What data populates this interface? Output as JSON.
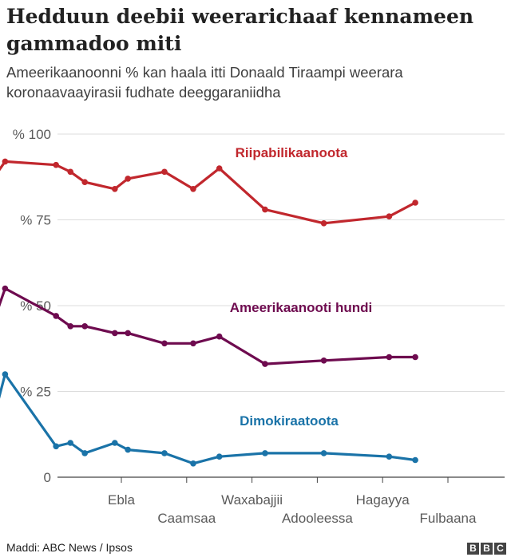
{
  "header": {
    "title": "Hedduun deebii weerarichaaf kennameen gammadoo miti",
    "subtitle": "Ameerikaanoonni % kan haala itti Donaald Tiraampi weerara koronaavaayirasii fudhate deeggaraniidha"
  },
  "footer": {
    "source": "Maddi: ABC News / Ipsos",
    "logo_letters": [
      "B",
      "B",
      "C"
    ]
  },
  "chart_data": {
    "type": "line",
    "title": "Hedduun deebii weerarichaaf kennameen gammadoo miti",
    "subtitle": "Ameerikaanoonni % kan haala itti Donaald Tiraampi weerara koronaavaayirasii fudhate deeggaraniidha",
    "ylim": [
      0,
      100
    ],
    "y_ticks": [
      {
        "value": 0,
        "label": "0"
      },
      {
        "value": 25,
        "label": "% 25"
      },
      {
        "value": 50,
        "label": "% 50"
      },
      {
        "value": 75,
        "label": "% 75"
      },
      {
        "value": 100,
        "label": "% 100"
      }
    ],
    "x_ticks": [
      {
        "month": 3.0,
        "label": "Ebla"
      },
      {
        "month": 4.0,
        "label": "Caamsaa"
      },
      {
        "month": 5.0,
        "label": "Waxabajjii"
      },
      {
        "month": 6.0,
        "label": "Adooleessa"
      },
      {
        "month": 7.0,
        "label": "Hagayya"
      },
      {
        "month": 8.0,
        "label": "Fulbaana"
      }
    ],
    "x": [
      1.0,
      1.22,
      2.0,
      2.22,
      2.44,
      2.9,
      3.1,
      3.66,
      4.1,
      4.5,
      5.2,
      6.1,
      7.1,
      7.5
    ],
    "series": [
      {
        "name": "Riipabilikaanoota",
        "color": "#c1272d",
        "values": [
          86,
          92,
          91,
          89,
          86,
          84,
          87,
          89,
          84,
          90,
          78,
          74,
          76,
          80
        ]
      },
      {
        "name": "Ameerikaanooti hundi",
        "color": "#6e0b4f",
        "values": [
          43,
          55,
          47,
          44,
          44,
          42,
          42,
          39,
          39,
          41,
          33,
          34,
          35,
          35
        ]
      },
      {
        "name": "Dimokiraatoota",
        "color": "#1a73a8",
        "values": [
          14,
          30,
          9,
          10,
          7,
          10,
          8,
          7,
          4,
          6,
          7,
          7,
          6,
          5
        ]
      }
    ],
    "grid": true,
    "legend": "inline labels"
  }
}
